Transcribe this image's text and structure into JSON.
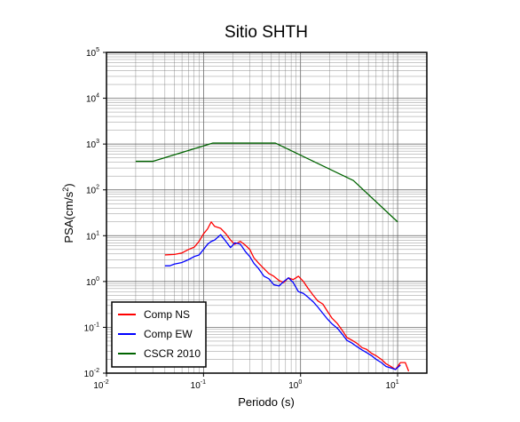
{
  "chart_data": {
    "type": "line",
    "title": "Sitio SHTH",
    "xlabel": "Periodo (s)",
    "ylabel": "PSA(cm/s²)",
    "ylabel_parts": {
      "base": "PSA(cm/s",
      "sup": "2",
      "end": ")"
    },
    "xscale": "log",
    "yscale": "log",
    "xlim": [
      0.01,
      20
    ],
    "ylim": [
      0.01,
      100000
    ],
    "x_ticks": [
      {
        "base": "10",
        "exp": "-2"
      },
      {
        "base": "10",
        "exp": "-1"
      },
      {
        "base": "10",
        "exp": "0"
      },
      {
        "base": "10",
        "exp": "1"
      }
    ],
    "y_ticks": [
      {
        "base": "10",
        "exp": "-2"
      },
      {
        "base": "10",
        "exp": "-1"
      },
      {
        "base": "10",
        "exp": "0"
      },
      {
        "base": "10",
        "exp": "1"
      },
      {
        "base": "10",
        "exp": "2"
      },
      {
        "base": "10",
        "exp": "3"
      },
      {
        "base": "10",
        "exp": "4"
      },
      {
        "base": "10",
        "exp": "5"
      }
    ],
    "grid": true,
    "legend_position": "bottom-left",
    "series": [
      {
        "name": "Comp NS",
        "color": "#ff0000",
        "x": [
          0.04,
          0.05,
          0.06,
          0.07,
          0.08,
          0.09,
          0.1,
          0.11,
          0.12,
          0.13,
          0.15,
          0.17,
          0.19,
          0.21,
          0.24,
          0.27,
          0.3,
          0.33,
          0.37,
          0.42,
          0.47,
          0.53,
          0.6,
          0.67,
          0.75,
          0.84,
          0.95,
          1.07,
          1.2,
          1.35,
          1.5,
          1.7,
          1.9,
          2.1,
          2.4,
          2.7,
          3.0,
          3.4,
          3.8,
          4.3,
          4.8,
          5.4,
          6.0,
          6.8,
          7.6,
          8.5,
          9.5,
          10.7,
          12.0,
          13.0
        ],
        "y": [
          3.8,
          3.9,
          4.2,
          5.0,
          5.6,
          7.5,
          11.0,
          14.0,
          20.0,
          16.0,
          14.5,
          11.0,
          8.0,
          6.5,
          7.5,
          6.2,
          5.0,
          3.3,
          2.5,
          1.9,
          1.5,
          1.3,
          1.05,
          0.95,
          1.2,
          1.1,
          1.3,
          1.0,
          0.7,
          0.5,
          0.38,
          0.32,
          0.22,
          0.16,
          0.12,
          0.085,
          0.06,
          0.052,
          0.045,
          0.036,
          0.033,
          0.027,
          0.024,
          0.02,
          0.016,
          0.014,
          0.012,
          0.017,
          0.017,
          0.011
        ]
      },
      {
        "name": "Comp EW",
        "color": "#0000ff",
        "x": [
          0.04,
          0.045,
          0.05,
          0.06,
          0.07,
          0.08,
          0.09,
          0.1,
          0.11,
          0.12,
          0.13,
          0.15,
          0.17,
          0.19,
          0.21,
          0.24,
          0.27,
          0.3,
          0.33,
          0.37,
          0.42,
          0.47,
          0.53,
          0.6,
          0.67,
          0.75,
          0.84,
          0.95,
          1.07,
          1.2,
          1.35,
          1.5,
          1.7,
          1.9,
          2.1,
          2.4,
          2.7,
          3.0,
          3.4,
          3.8,
          4.3,
          4.8,
          5.4,
          6.0,
          6.8,
          7.6,
          8.5,
          9.5,
          10.7
        ],
        "y": [
          2.2,
          2.2,
          2.4,
          2.6,
          3.0,
          3.5,
          3.8,
          5.0,
          6.5,
          7.5,
          8.0,
          10.5,
          7.5,
          5.5,
          7.0,
          6.5,
          4.5,
          3.5,
          2.5,
          1.9,
          1.3,
          1.15,
          0.85,
          0.8,
          1.0,
          1.2,
          0.95,
          0.6,
          0.55,
          0.45,
          0.36,
          0.28,
          0.2,
          0.15,
          0.12,
          0.095,
          0.07,
          0.052,
          0.045,
          0.038,
          0.032,
          0.028,
          0.024,
          0.02,
          0.017,
          0.014,
          0.013,
          0.012,
          0.015
        ]
      },
      {
        "name": "CSCR 2010",
        "color": "#006400",
        "x": [
          0.02,
          0.03,
          0.125,
          0.55,
          3.5,
          10.0
        ],
        "y": [
          420,
          420,
          1050,
          1050,
          160,
          20
        ]
      }
    ]
  },
  "legend": {
    "items": [
      {
        "label": "Comp NS",
        "color": "#ff0000"
      },
      {
        "label": "Comp EW",
        "color": "#0000ff"
      },
      {
        "label": "CSCR 2010",
        "color": "#006400"
      }
    ]
  }
}
